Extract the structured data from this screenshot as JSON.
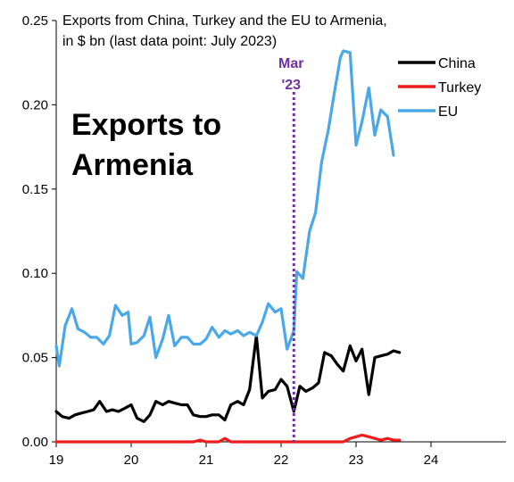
{
  "chart_data": {
    "type": "line",
    "title_line1": "Exports from China, Turkey and the EU to Armenia,",
    "title_line2": "in $ bn (last data point: July 2023)",
    "overlay_line1": "Exports to",
    "overlay_line2": "Armenia",
    "annotation_line1": "Mar",
    "annotation_line2": "'23",
    "annotation_x": 2022.17,
    "annotation_color": "#7030a0",
    "xlim": [
      2019,
      2025
    ],
    "ylim": [
      0,
      0.25
    ],
    "x_ticks": [
      {
        "value": 2019,
        "label": "19"
      },
      {
        "value": 2020,
        "label": "20"
      },
      {
        "value": 2021,
        "label": "21"
      },
      {
        "value": 2022,
        "label": "22"
      },
      {
        "value": 2023,
        "label": "23"
      },
      {
        "value": 2024,
        "label": "24"
      }
    ],
    "y_ticks": [
      {
        "value": 0.0,
        "label": "0.00"
      },
      {
        "value": 0.05,
        "label": "0.05"
      },
      {
        "value": 0.1,
        "label": "0.10"
      },
      {
        "value": 0.15,
        "label": "0.15"
      },
      {
        "value": 0.2,
        "label": "0.20"
      },
      {
        "value": 0.25,
        "label": "0.25"
      }
    ],
    "legend_position": "top-right",
    "grid": false,
    "series": [
      {
        "name": "China",
        "color": "#000000",
        "points": [
          [
            2019.0,
            0.018
          ],
          [
            2019.08,
            0.015
          ],
          [
            2019.17,
            0.014
          ],
          [
            2019.25,
            0.016
          ],
          [
            2019.33,
            0.017
          ],
          [
            2019.42,
            0.018
          ],
          [
            2019.5,
            0.019
          ],
          [
            2019.58,
            0.024
          ],
          [
            2019.67,
            0.018
          ],
          [
            2019.75,
            0.019
          ],
          [
            2019.83,
            0.018
          ],
          [
            2019.92,
            0.02
          ],
          [
            2020.0,
            0.022
          ],
          [
            2020.08,
            0.014
          ],
          [
            2020.17,
            0.012
          ],
          [
            2020.25,
            0.016
          ],
          [
            2020.33,
            0.024
          ],
          [
            2020.42,
            0.022
          ],
          [
            2020.5,
            0.024
          ],
          [
            2020.58,
            0.023
          ],
          [
            2020.67,
            0.022
          ],
          [
            2020.75,
            0.022
          ],
          [
            2020.83,
            0.016
          ],
          [
            2020.92,
            0.015
          ],
          [
            2021.0,
            0.015
          ],
          [
            2021.08,
            0.016
          ],
          [
            2021.17,
            0.016
          ],
          [
            2021.25,
            0.013
          ],
          [
            2021.33,
            0.022
          ],
          [
            2021.42,
            0.024
          ],
          [
            2021.5,
            0.022
          ],
          [
            2021.58,
            0.031
          ],
          [
            2021.67,
            0.063
          ],
          [
            2021.75,
            0.026
          ],
          [
            2021.83,
            0.03
          ],
          [
            2021.92,
            0.031
          ],
          [
            2022.0,
            0.037
          ],
          [
            2022.08,
            0.033
          ],
          [
            2022.17,
            0.018
          ],
          [
            2022.25,
            0.033
          ],
          [
            2022.33,
            0.03
          ],
          [
            2022.42,
            0.032
          ],
          [
            2022.5,
            0.035
          ],
          [
            2022.58,
            0.053
          ],
          [
            2022.67,
            0.051
          ],
          [
            2022.75,
            0.046
          ],
          [
            2022.83,
            0.042
          ],
          [
            2022.92,
            0.057
          ],
          [
            2023.0,
            0.048
          ],
          [
            2023.08,
            0.055
          ],
          [
            2023.17,
            0.028
          ],
          [
            2023.25,
            0.05
          ],
          [
            2023.33,
            0.051
          ],
          [
            2023.42,
            0.052
          ],
          [
            2023.5,
            0.054
          ],
          [
            2023.58,
            0.053
          ]
        ]
      },
      {
        "name": "Turkey",
        "color": "#ee1c1c",
        "points": [
          [
            2019.0,
            0.0
          ],
          [
            2019.5,
            0.0
          ],
          [
            2020.0,
            0.0
          ],
          [
            2020.5,
            0.0
          ],
          [
            2020.83,
            0.0
          ],
          [
            2020.92,
            0.001
          ],
          [
            2021.0,
            0.0
          ],
          [
            2021.17,
            0.0
          ],
          [
            2021.25,
            0.002
          ],
          [
            2021.33,
            0.0
          ],
          [
            2021.5,
            0.0
          ],
          [
            2022.0,
            0.0
          ],
          [
            2022.5,
            0.0
          ],
          [
            2022.83,
            0.0
          ],
          [
            2022.92,
            0.002
          ],
          [
            2023.0,
            0.003
          ],
          [
            2023.08,
            0.004
          ],
          [
            2023.17,
            0.003
          ],
          [
            2023.25,
            0.002
          ],
          [
            2023.33,
            0.001
          ],
          [
            2023.42,
            0.002
          ],
          [
            2023.5,
            0.001
          ],
          [
            2023.58,
            0.001
          ]
        ]
      },
      {
        "name": "EU",
        "color": "#4aa8e8",
        "points": [
          [
            2019.0,
            0.057
          ],
          [
            2019.04,
            0.045
          ],
          [
            2019.12,
            0.069
          ],
          [
            2019.21,
            0.079
          ],
          [
            2019.29,
            0.067
          ],
          [
            2019.38,
            0.065
          ],
          [
            2019.46,
            0.062
          ],
          [
            2019.54,
            0.062
          ],
          [
            2019.63,
            0.058
          ],
          [
            2019.71,
            0.063
          ],
          [
            2019.79,
            0.081
          ],
          [
            2019.88,
            0.075
          ],
          [
            2019.96,
            0.077
          ],
          [
            2020.0,
            0.058
          ],
          [
            2020.08,
            0.059
          ],
          [
            2020.17,
            0.063
          ],
          [
            2020.25,
            0.074
          ],
          [
            2020.33,
            0.05
          ],
          [
            2020.42,
            0.061
          ],
          [
            2020.5,
            0.075
          ],
          [
            2020.58,
            0.057
          ],
          [
            2020.67,
            0.062
          ],
          [
            2020.75,
            0.062
          ],
          [
            2020.83,
            0.058
          ],
          [
            2020.92,
            0.058
          ],
          [
            2021.0,
            0.061
          ],
          [
            2021.08,
            0.068
          ],
          [
            2021.17,
            0.062
          ],
          [
            2021.25,
            0.066
          ],
          [
            2021.33,
            0.064
          ],
          [
            2021.42,
            0.066
          ],
          [
            2021.5,
            0.063
          ],
          [
            2021.58,
            0.065
          ],
          [
            2021.67,
            0.063
          ],
          [
            2021.75,
            0.071
          ],
          [
            2021.83,
            0.082
          ],
          [
            2021.92,
            0.077
          ],
          [
            2022.0,
            0.079
          ],
          [
            2022.08,
            0.055
          ],
          [
            2022.17,
            0.066
          ],
          [
            2022.21,
            0.101
          ],
          [
            2022.29,
            0.097
          ],
          [
            2022.38,
            0.125
          ],
          [
            2022.46,
            0.136
          ],
          [
            2022.54,
            0.166
          ],
          [
            2022.63,
            0.185
          ],
          [
            2022.71,
            0.207
          ],
          [
            2022.79,
            0.228
          ],
          [
            2022.83,
            0.232
          ],
          [
            2022.92,
            0.231
          ],
          [
            2023.0,
            0.176
          ],
          [
            2023.08,
            0.19
          ],
          [
            2023.17,
            0.21
          ],
          [
            2023.25,
            0.182
          ],
          [
            2023.33,
            0.197
          ],
          [
            2023.42,
            0.193
          ],
          [
            2023.5,
            0.17
          ]
        ]
      }
    ]
  }
}
